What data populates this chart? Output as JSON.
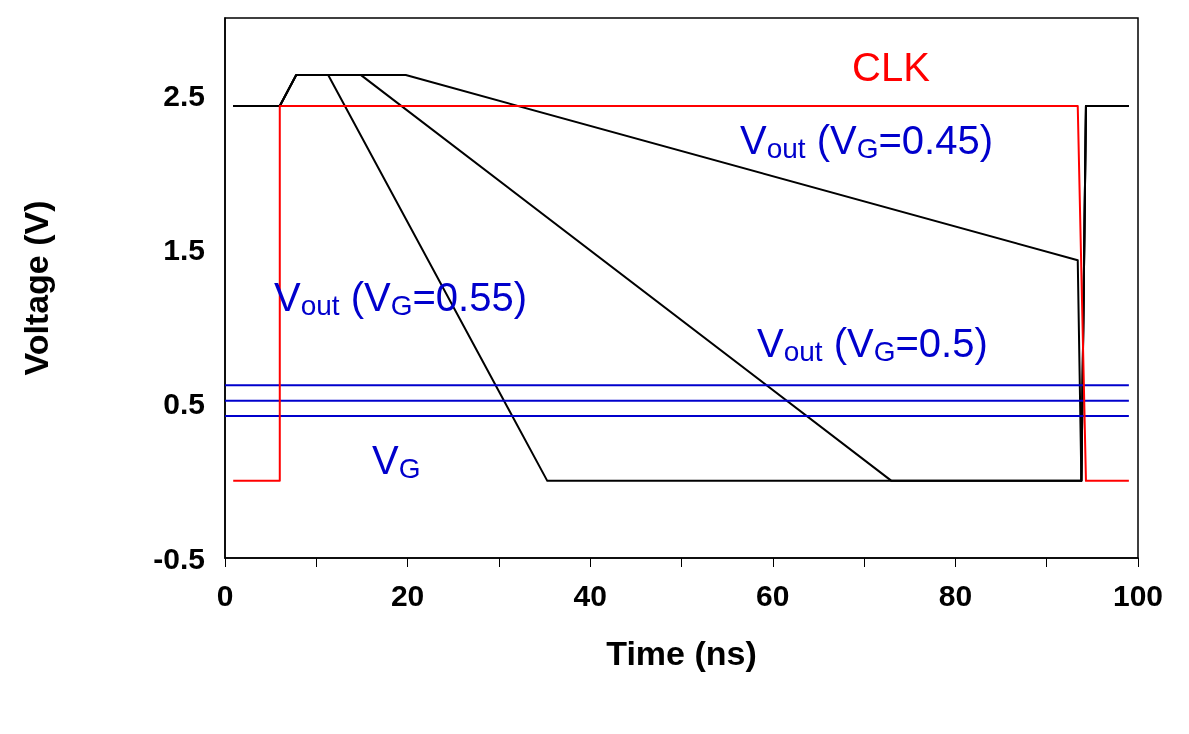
{
  "chart_data": {
    "type": "line",
    "xlabel": "Time (ns)",
    "ylabel": "Voltage (V)",
    "xlim": [
      0,
      100
    ],
    "ylim": [
      -0.5,
      3
    ],
    "xticks": [
      0,
      {
        "value": 10,
        "label": null
      },
      20,
      {
        "value": 30,
        "label": null
      },
      40,
      {
        "value": 50,
        "label": null
      },
      60,
      {
        "value": 70,
        "label": null
      },
      80,
      {
        "value": 90,
        "label": null
      },
      100
    ],
    "yticks": [
      -0.5,
      0.5,
      1.5,
      2.5
    ],
    "grid": false,
    "marker": "none",
    "line_style": "solid",
    "series": [
      {
        "color": "#ff0000",
        "x": [
          0.9,
          6,
          6,
          93.4,
          94.3,
          99
        ],
        "values": [
          0,
          0,
          2.43,
          2.43,
          0,
          0
        ]
      },
      {
        "color": "#000000",
        "x": [
          0.9,
          6,
          7.8,
          11.3,
          35.3,
          93.8,
          94.3,
          99
        ],
        "values": [
          2.43,
          2.43,
          2.63,
          2.63,
          0,
          0,
          2.43,
          2.43
        ]
      },
      {
        "color": "#000000",
        "x": [
          0.9,
          6,
          7.8,
          14.9,
          73,
          93.8,
          94.3,
          99
        ],
        "values": [
          2.43,
          2.43,
          2.63,
          2.63,
          0,
          0,
          2.43,
          2.43
        ]
      },
      {
        "color": "#000000",
        "x": [
          0.9,
          6,
          7.8,
          19.8,
          93.4,
          93.8,
          94.3,
          99
        ],
        "values": [
          2.43,
          2.43,
          2.63,
          2.63,
          1.43,
          0,
          2.43,
          2.43
        ]
      },
      {
        "color": "#0000cc",
        "x": [
          0,
          99
        ],
        "values": [
          0.62,
          0.62
        ]
      },
      {
        "color": "#0000cc",
        "x": [
          0,
          99
        ],
        "values": [
          0.52,
          0.52
        ]
      },
      {
        "color": "#0000cc",
        "x": [
          0,
          99
        ],
        "values": [
          0.42,
          0.42
        ]
      }
    ],
    "annotations": [
      "CLK",
      "V$_{out}$ (V$_{G}$=0.45)",
      "V$_{out}$ (V$_{G}$=0.55)",
      "V$_{out}$ (V$_{G}$=0.5)",
      "V$_{G}$"
    ]
  }
}
